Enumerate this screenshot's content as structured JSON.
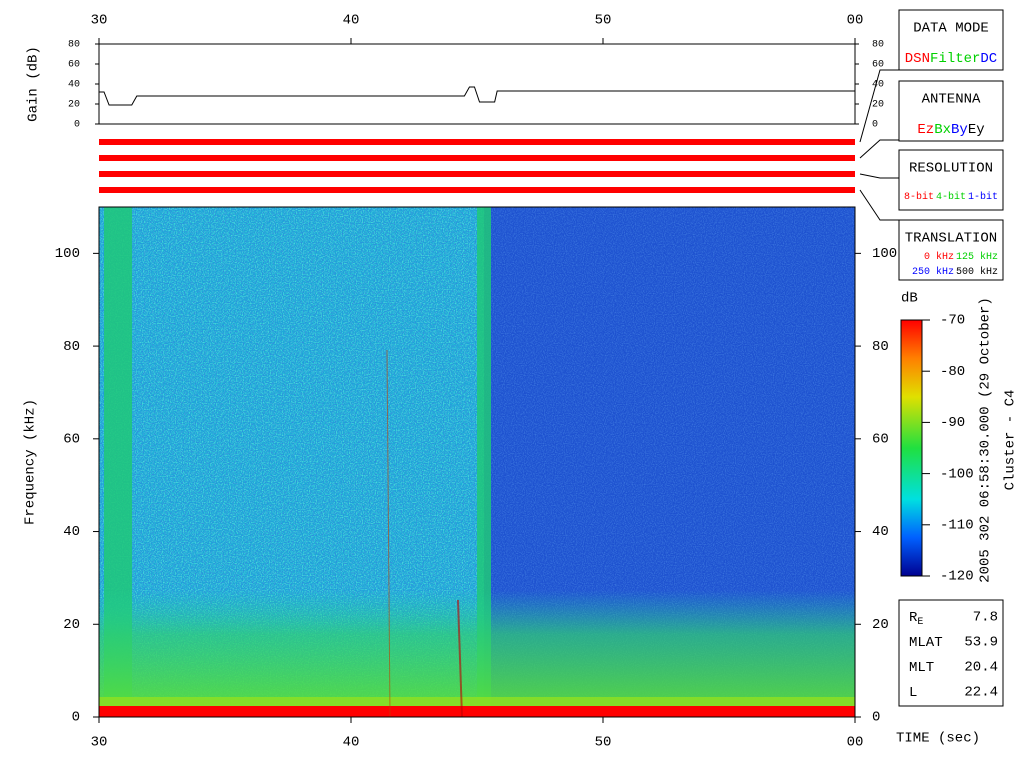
{
  "chart_data": {
    "type": "spectrogram",
    "xlim": [
      30,
      60
    ],
    "xticks": [
      30,
      40,
      50,
      {
        "value": 60,
        "label": "00"
      }
    ],
    "xlabel": "TIME (sec)",
    "ylabel": "Frequency (kHz)",
    "ylim": [
      0,
      110
    ],
    "yticks": [
      0,
      20,
      40,
      60,
      80,
      100
    ],
    "gain": {
      "ylabel": "Gain (dB)",
      "ylim": [
        0,
        80
      ],
      "yticks": [
        0,
        20,
        40,
        60,
        80
      ],
      "color": "#000000",
      "x": [
        30,
        30.2,
        30.4,
        31.3,
        31.5,
        44.5,
        44.7,
        44.9,
        45.1,
        45.7,
        45.8,
        60
      ],
      "values": [
        32,
        32,
        19,
        19,
        28,
        28,
        37,
        37,
        22,
        22,
        33,
        33
      ]
    },
    "mode_bar_colors": [
      "#ff0000",
      "#ff0000",
      "#ff0000",
      "#ff0000"
    ],
    "colorbar": {
      "label": "dB",
      "lim": [
        -120,
        -70
      ],
      "ticks": [
        -70,
        -80,
        -90,
        -100,
        -110,
        -120
      ]
    },
    "side_text": [
      "2005 302 06:58:30.000 (29 October)",
      "Cluster - C4"
    ],
    "boxes": [
      {
        "title": "DATA MODE",
        "rows": [
          [
            {
              "text": "DSN",
              "color": "#ff0000"
            },
            {
              "text": "Filter",
              "color": "#00d000"
            },
            {
              "text": "DC",
              "color": "#0000ff"
            }
          ]
        ]
      },
      {
        "title": "ANTENNA",
        "rows": [
          [
            {
              "text": "Ez",
              "color": "#ff0000"
            },
            {
              "text": "Bx",
              "color": "#00d000"
            },
            {
              "text": "By",
              "color": "#0000ff"
            },
            {
              "text": "Ey",
              "color": "#000000"
            }
          ]
        ]
      },
      {
        "title": "RESOLUTION",
        "rows": [
          [
            {
              "text": "8-bit",
              "color": "#ff0000"
            },
            {
              "text": "4-bit",
              "color": "#00d000"
            },
            {
              "text": "1-bit",
              "color": "#0000ff"
            }
          ]
        ]
      },
      {
        "title": "TRANSLATION",
        "rows": [
          [
            {
              "text": "0 kHz",
              "color": "#ff0000"
            },
            {
              "text": "125 kHz",
              "color": "#00d000"
            }
          ],
          [
            {
              "text": "250 kHz",
              "color": "#0000ff"
            },
            {
              "text": "500 kHz",
              "color": "#000000"
            }
          ]
        ]
      }
    ],
    "info": [
      {
        "label": "R",
        "sub": "E",
        "value": 7.8
      },
      {
        "label": "MLAT",
        "value": 53.9
      },
      {
        "label": "MLT",
        "value": 20.4
      },
      {
        "label": "L",
        "value": 22.4
      }
    ]
  }
}
